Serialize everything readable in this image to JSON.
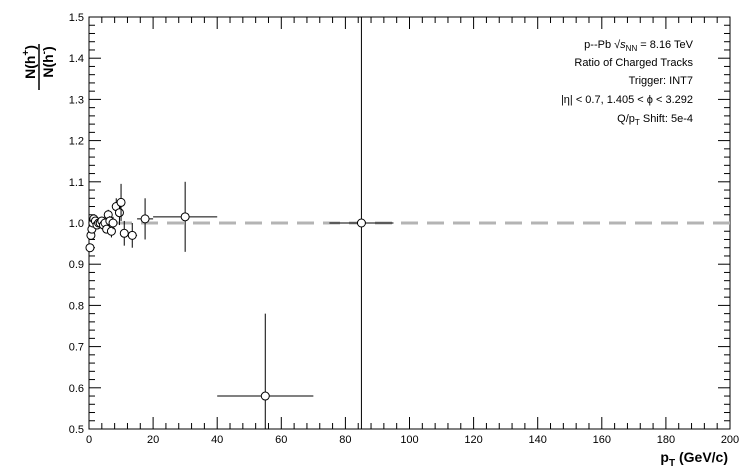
{
  "chart_data": {
    "type": "scatter",
    "xlabel": "p",
    "xlabel_sub": "T",
    "xlabel_unit": "(GeV/c)",
    "ylabel_num": "N(h",
    "ylabel_num_sup": "+",
    "ylabel_den": "N(h",
    "ylabel_den_sup": "-",
    "ylabel_close": ")",
    "xlim": [
      0,
      200
    ],
    "ylim": [
      0.5,
      1.5
    ],
    "x_ticks": [
      0,
      20,
      40,
      60,
      80,
      100,
      120,
      140,
      160,
      180,
      200
    ],
    "y_ticks": [
      0.5,
      0.6,
      0.7,
      0.8,
      0.9,
      1.0,
      1.1,
      1.2,
      1.3,
      1.4,
      1.5
    ],
    "x_tick_labels": [
      "0",
      "20",
      "40",
      "60",
      "80",
      "100",
      "120",
      "140",
      "160",
      "180",
      "200"
    ],
    "y_tick_labels": [
      "0.5",
      "0.6",
      "0.7",
      "0.8",
      "0.9",
      "1.0",
      "1.1",
      "1.2",
      "1.3",
      "1.4",
      "1.5"
    ],
    "reference_line": {
      "y": 1.0,
      "style": "dashed",
      "color": "#b4b4b4"
    },
    "grid": false,
    "points": [
      {
        "x": 0.3,
        "y": 0.94,
        "xerr": 0.2,
        "yerr": 0.01
      },
      {
        "x": 0.6,
        "y": 0.97,
        "xerr": 0.2,
        "yerr": 0.01
      },
      {
        "x": 0.9,
        "y": 0.985,
        "xerr": 0.2,
        "yerr": 0.005
      },
      {
        "x": 1.2,
        "y": 1.0,
        "xerr": 0.2,
        "yerr": 0.005
      },
      {
        "x": 1.5,
        "y": 1.01,
        "xerr": 0.2,
        "yerr": 0.005
      },
      {
        "x": 2.0,
        "y": 1.005,
        "xerr": 0.3,
        "yerr": 0.005
      },
      {
        "x": 2.5,
        "y": 0.995,
        "xerr": 0.3,
        "yerr": 0.005
      },
      {
        "x": 3.0,
        "y": 1.0,
        "xerr": 0.3,
        "yerr": 0.005
      },
      {
        "x": 3.5,
        "y": 1.0,
        "xerr": 0.3,
        "yerr": 0.008
      },
      {
        "x": 4.0,
        "y": 1.005,
        "xerr": 0.3,
        "yerr": 0.008
      },
      {
        "x": 4.5,
        "y": 0.995,
        "xerr": 0.3,
        "yerr": 0.008
      },
      {
        "x": 5.0,
        "y": 1.0,
        "xerr": 0.3,
        "yerr": 0.01
      },
      {
        "x": 5.5,
        "y": 0.985,
        "xerr": 0.3,
        "yerr": 0.01
      },
      {
        "x": 6.0,
        "y": 1.02,
        "xerr": 0.3,
        "yerr": 0.012
      },
      {
        "x": 6.5,
        "y": 1.005,
        "xerr": 0.3,
        "yerr": 0.012
      },
      {
        "x": 7.0,
        "y": 0.98,
        "xerr": 0.3,
        "yerr": 0.015
      },
      {
        "x": 7.5,
        "y": 1.0,
        "xerr": 0.3,
        "yerr": 0.015
      },
      {
        "x": 8.5,
        "y": 1.04,
        "xerr": 0.5,
        "yerr": 0.02
      },
      {
        "x": 9.5,
        "y": 1.025,
        "xerr": 0.5,
        "yerr": 0.03
      },
      {
        "x": 10.0,
        "y": 1.05,
        "xerr": 0.5,
        "yerr": 0.045
      },
      {
        "x": 11.0,
        "y": 0.975,
        "xerr": 1.0,
        "yerr": 0.03
      },
      {
        "x": 13.5,
        "y": 0.97,
        "xerr": 1.5,
        "yerr": 0.03
      },
      {
        "x": 17.5,
        "y": 1.01,
        "xerr": 2.5,
        "yerr": 0.05
      },
      {
        "x": 30.0,
        "y": 1.015,
        "xerr": 10.0,
        "yerr": 0.085
      },
      {
        "x": 55.0,
        "y": 0.58,
        "xerr": 15.0,
        "yerr": 0.2
      },
      {
        "x": 85.0,
        "y": 1.0,
        "xerr": 10.0,
        "yerr": 0.55
      }
    ],
    "info_lines": {
      "line1_pre": "p--Pb",
      "line1_s": "s",
      "line1_sub": "NN",
      "line1_post": " = 8.16 TeV",
      "line2": "Ratio of Charged Tracks",
      "line3": "Trigger: INT7",
      "line4": "|η| < 0.7, 1.405 < ϕ < 3.292",
      "line5_pre": "Q/p",
      "line5_sub": "T",
      "line5_post": " Shift: 5e-4"
    }
  }
}
